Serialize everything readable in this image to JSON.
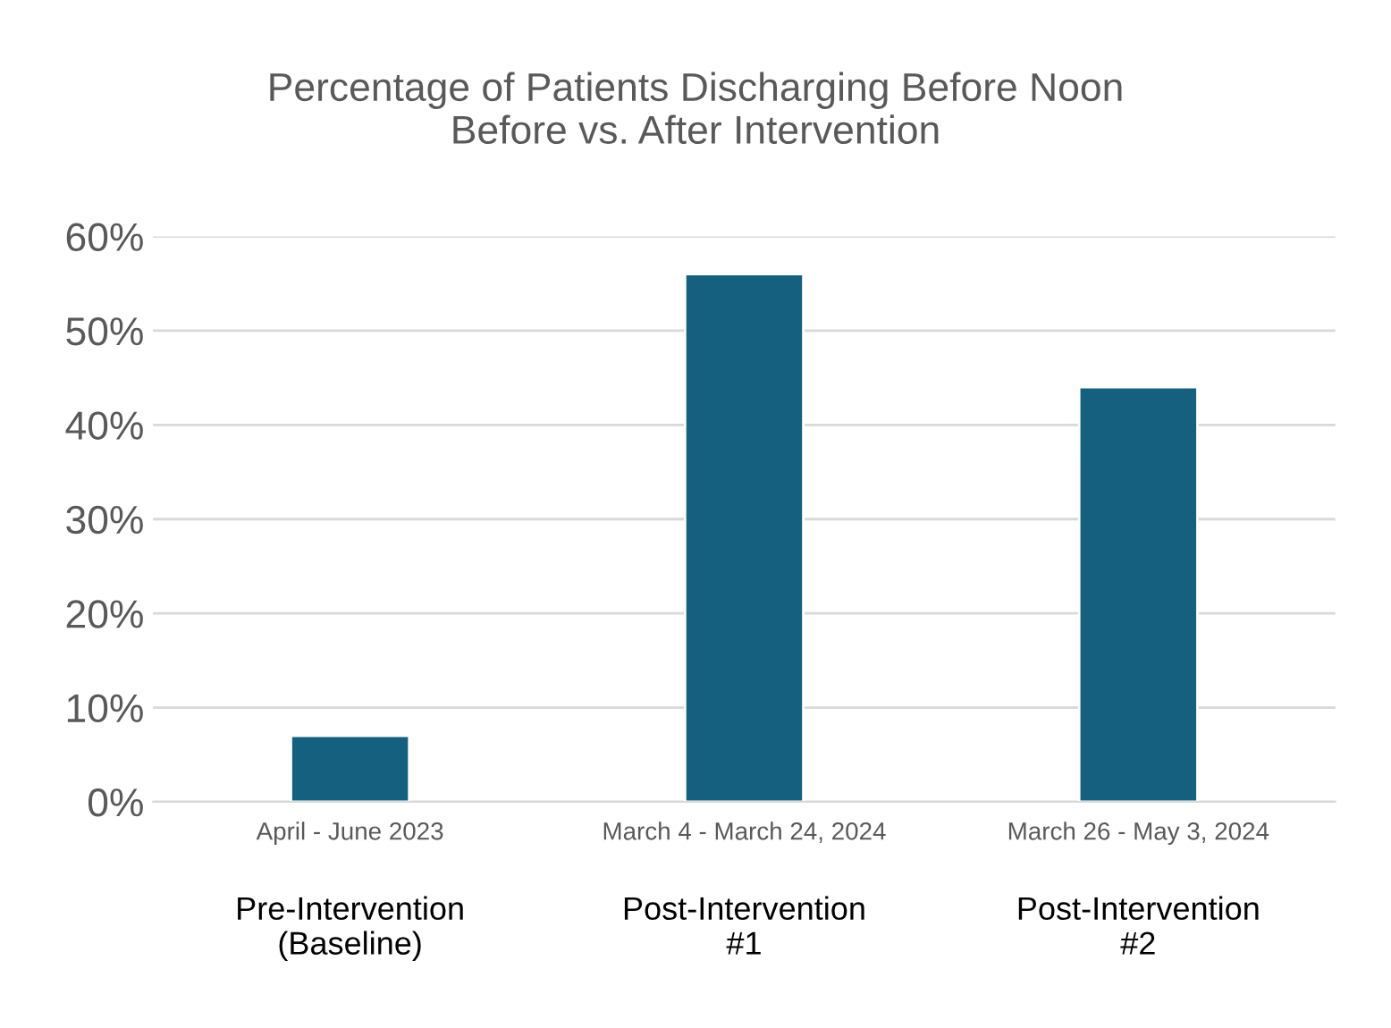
{
  "chart_data": {
    "type": "bar",
    "title": "Percentage of Patients Discharging Before Noon\nBefore vs. After Intervention",
    "categories": [
      "April - June 2023",
      "March 4 - March 24, 2024",
      "March 26 - May 3, 2024"
    ],
    "values": [
      7,
      56,
      44
    ],
    "color": "#155f7f",
    "ylim": [
      0,
      60
    ],
    "yticks": [
      {
        "value": 0,
        "label": "0%"
      },
      {
        "value": 10,
        "label": "10%"
      },
      {
        "value": 20,
        "label": "20%"
      },
      {
        "value": 30,
        "label": "30%"
      },
      {
        "value": 40,
        "label": "40%"
      },
      {
        "value": 50,
        "label": "50%"
      },
      {
        "value": 60,
        "label": "60%"
      }
    ],
    "grid": "y",
    "legend": false,
    "annotations": [
      "Pre-Intervention\n(Baseline)",
      "Post-Intervention\n#1",
      "Post-Intervention\n#2"
    ]
  }
}
